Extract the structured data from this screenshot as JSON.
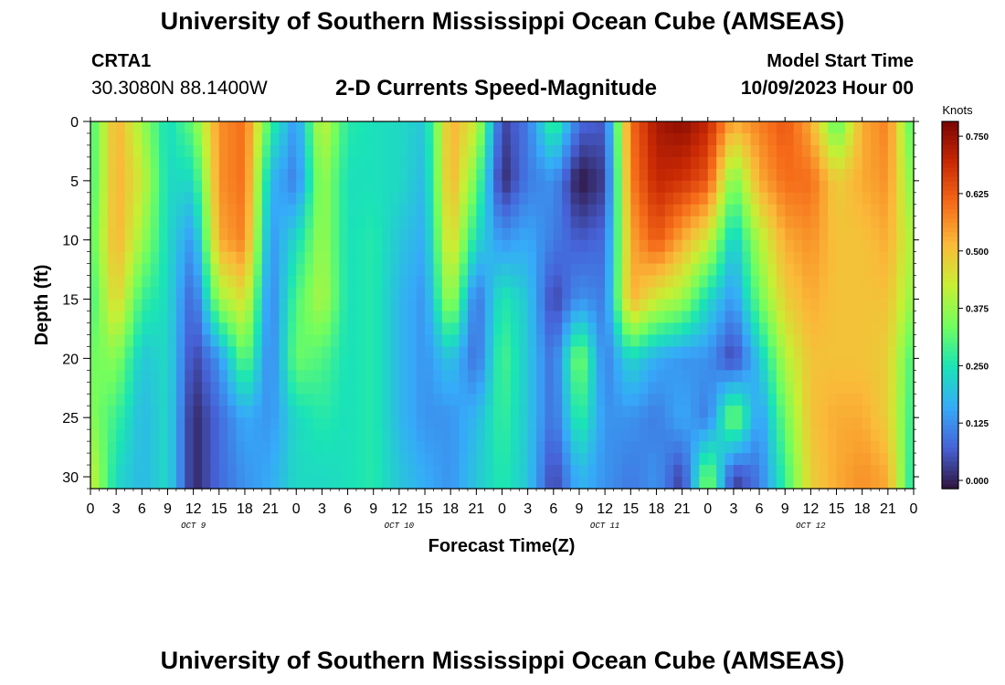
{
  "header": {
    "title": "University of Southern Mississippi Ocean Cube (AMSEAS)",
    "station_id": "CRTA1",
    "station_coords": "30.3080N  88.1400W",
    "subtitle": "2-D Currents Speed-Magnitude",
    "model_start_label": "Model Start Time",
    "model_start_value": "10/09/2023 Hour 00"
  },
  "footer": {
    "title": "University of Southern Mississippi Ocean Cube (AMSEAS)"
  },
  "chart_data": {
    "type": "heatmap",
    "xlabel": "Forecast Time(Z)",
    "ylabel": "Depth (ft)",
    "colorbar_label": "Knots",
    "x_tick_labels": [
      "0",
      "3",
      "6",
      "9",
      "12",
      "15",
      "18",
      "21",
      "0",
      "3",
      "6",
      "9",
      "12",
      "15",
      "18",
      "21",
      "0",
      "3",
      "6",
      "9",
      "12",
      "15",
      "18",
      "21",
      "0",
      "3",
      "6",
      "9",
      "12",
      "15",
      "18",
      "21",
      "0"
    ],
    "date_labels": [
      "OCT 9",
      "OCT 10",
      "OCT 11",
      "OCT 12"
    ],
    "y_tick_labels": [
      "0",
      "5",
      "10",
      "15",
      "20",
      "25",
      "30"
    ],
    "ylim": [
      0,
      31
    ],
    "x_range_hours": [
      0,
      96
    ],
    "colorbar_ticks": [
      "0.000",
      "0.125",
      "0.250",
      "0.375",
      "0.500",
      "0.625",
      "0.750"
    ],
    "colorbar_range": [
      0,
      0.8
    ],
    "colormap": [
      "#30123b",
      "#4662d7",
      "#36aaf9",
      "#1ae4b6",
      "#72fe5e",
      "#c8ef34",
      "#faba39",
      "#f66b19",
      "#ca2a04",
      "#7a0403"
    ],
    "depths_ft": [
      0,
      5,
      10,
      15,
      20,
      25,
      30
    ],
    "hours": [
      0,
      3,
      6,
      9,
      12,
      15,
      18,
      21,
      24,
      27,
      30,
      33,
      36,
      39,
      42,
      45,
      48,
      51,
      54,
      57,
      60,
      63,
      66,
      69,
      72,
      75,
      78,
      81,
      84,
      87,
      90,
      93,
      96
    ],
    "speed_knots": [
      [
        0.3,
        0.55,
        0.4,
        0.25,
        0.35,
        0.58,
        0.62,
        0.3,
        0.15,
        0.45,
        0.28,
        0.26,
        0.25,
        0.22,
        0.55,
        0.45,
        0.05,
        0.12,
        0.32,
        0.1,
        0.08,
        0.62,
        0.75,
        0.78,
        0.72,
        0.55,
        0.6,
        0.65,
        0.55,
        0.32,
        0.55,
        0.6,
        0.3
      ],
      [
        0.3,
        0.55,
        0.45,
        0.25,
        0.25,
        0.58,
        0.62,
        0.2,
        0.12,
        0.4,
        0.26,
        0.26,
        0.25,
        0.2,
        0.55,
        0.35,
        0.02,
        0.12,
        0.15,
        0.0,
        0.05,
        0.6,
        0.72,
        0.7,
        0.65,
        0.35,
        0.55,
        0.62,
        0.62,
        0.5,
        0.55,
        0.58,
        0.35
      ],
      [
        0.32,
        0.55,
        0.4,
        0.25,
        0.15,
        0.55,
        0.6,
        0.15,
        0.25,
        0.4,
        0.26,
        0.28,
        0.22,
        0.18,
        0.5,
        0.25,
        0.15,
        0.18,
        0.12,
        0.08,
        0.1,
        0.55,
        0.65,
        0.55,
        0.45,
        0.22,
        0.42,
        0.55,
        0.58,
        0.52,
        0.52,
        0.55,
        0.4
      ],
      [
        0.3,
        0.5,
        0.3,
        0.25,
        0.08,
        0.4,
        0.48,
        0.12,
        0.32,
        0.42,
        0.26,
        0.28,
        0.2,
        0.15,
        0.42,
        0.1,
        0.28,
        0.22,
        0.05,
        0.15,
        0.12,
        0.55,
        0.45,
        0.4,
        0.25,
        0.15,
        0.35,
        0.5,
        0.55,
        0.52,
        0.52,
        0.52,
        0.38
      ],
      [
        0.35,
        0.38,
        0.22,
        0.25,
        0.05,
        0.15,
        0.35,
        0.12,
        0.35,
        0.32,
        0.26,
        0.28,
        0.2,
        0.15,
        0.22,
        0.1,
        0.32,
        0.22,
        0.1,
        0.38,
        0.12,
        0.25,
        0.18,
        0.15,
        0.15,
        0.05,
        0.22,
        0.42,
        0.52,
        0.52,
        0.52,
        0.5,
        0.3
      ],
      [
        0.38,
        0.3,
        0.2,
        0.25,
        0.02,
        0.1,
        0.18,
        0.15,
        0.25,
        0.28,
        0.26,
        0.28,
        0.2,
        0.15,
        0.15,
        0.2,
        0.3,
        0.22,
        0.1,
        0.3,
        0.15,
        0.15,
        0.12,
        0.18,
        0.12,
        0.38,
        0.15,
        0.35,
        0.52,
        0.55,
        0.55,
        0.5,
        0.28
      ],
      [
        0.45,
        0.25,
        0.2,
        0.25,
        0.02,
        0.1,
        0.15,
        0.18,
        0.25,
        0.25,
        0.26,
        0.28,
        0.22,
        0.18,
        0.15,
        0.22,
        0.28,
        0.22,
        0.05,
        0.2,
        0.15,
        0.12,
        0.15,
        0.05,
        0.38,
        0.05,
        0.12,
        0.3,
        0.5,
        0.55,
        0.58,
        0.55,
        0.25
      ]
    ]
  }
}
